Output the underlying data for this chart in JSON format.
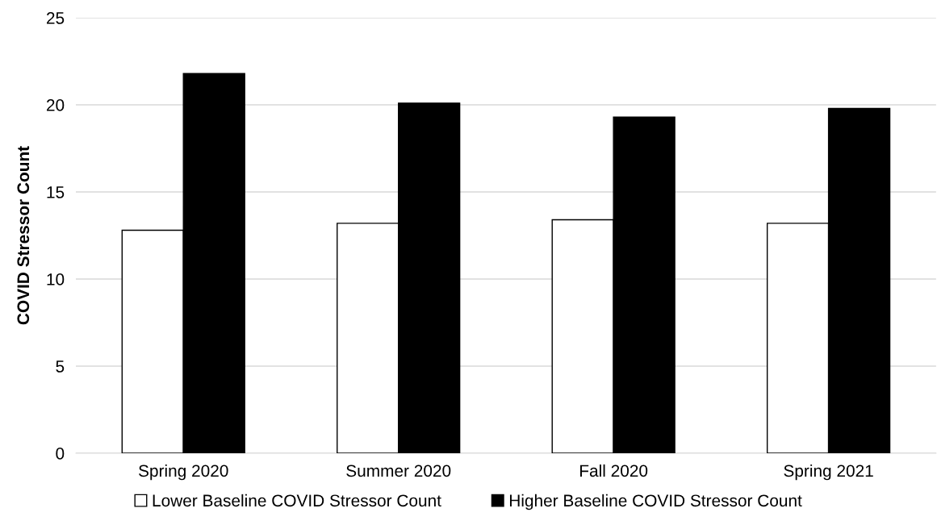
{
  "chart_data": {
    "type": "bar",
    "ylabel": "COVID Stressor Count",
    "categories": [
      "Spring 2020",
      "Summer 2020",
      "Fall 2020",
      "Spring 2021"
    ],
    "series": [
      {
        "name": "Lower Baseline COVID Stressor Count",
        "color": "#ffffff",
        "values": [
          12.8,
          13.2,
          13.4,
          13.2
        ]
      },
      {
        "name": "Higher Baseline COVID Stressor Count",
        "color": "#000000",
        "values": [
          21.8,
          20.1,
          19.3,
          19.8
        ]
      }
    ],
    "ylim": [
      0,
      25
    ],
    "yticks": [
      0,
      5,
      10,
      15,
      20,
      25
    ],
    "grid": "y",
    "legend": "bottom"
  }
}
